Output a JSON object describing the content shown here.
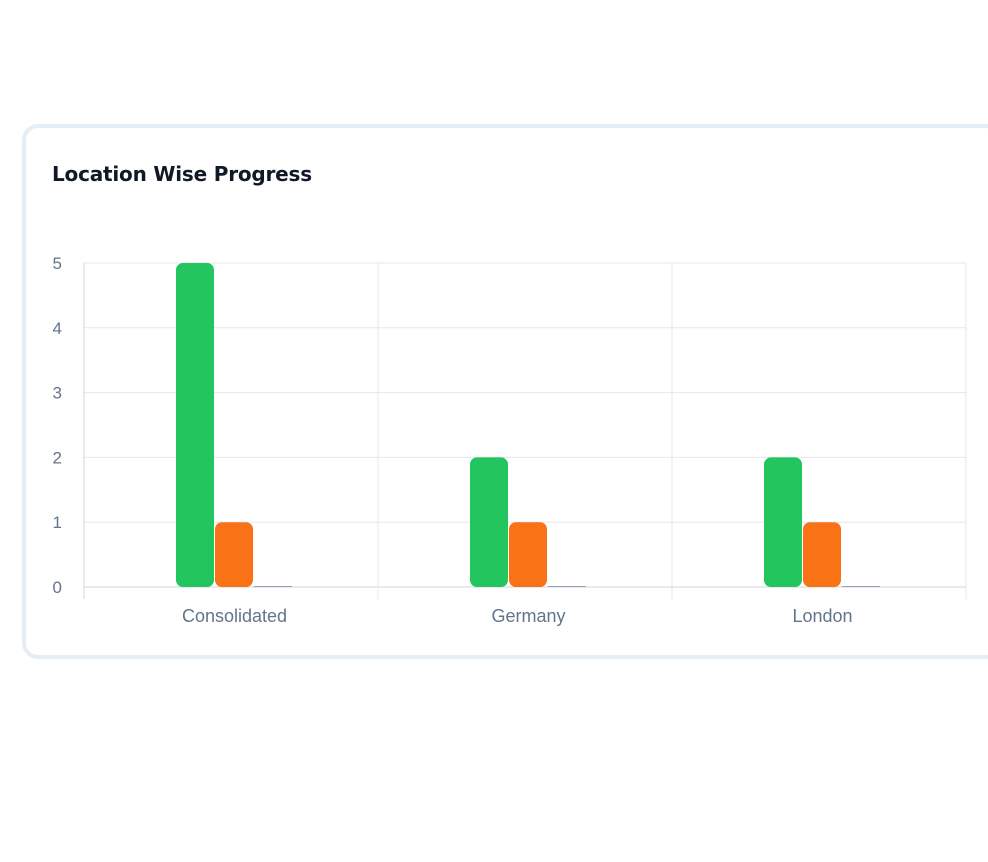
{
  "card": {
    "title": "Location Wise Progress"
  },
  "colors": {
    "series_1": "#22c55e",
    "series_2": "#f97316",
    "series_3": "#94a3b8",
    "grid": "#e5e7eb",
    "axis": "#d1d5db"
  },
  "chart_data": {
    "type": "bar",
    "title": "Location Wise Progress",
    "categories": [
      "Consolidated",
      "Germany",
      "London"
    ],
    "series": [
      {
        "color": "#22c55e",
        "values": [
          5,
          2,
          2
        ]
      },
      {
        "color": "#f97316",
        "values": [
          1,
          1,
          1
        ]
      },
      {
        "color": "#94a3b8",
        "values": [
          0,
          0,
          0
        ]
      }
    ],
    "ylim": [
      0,
      5
    ],
    "yticks": [
      0,
      1,
      2,
      3,
      4,
      5
    ],
    "grid": true,
    "xlabel": "",
    "ylabel": ""
  }
}
